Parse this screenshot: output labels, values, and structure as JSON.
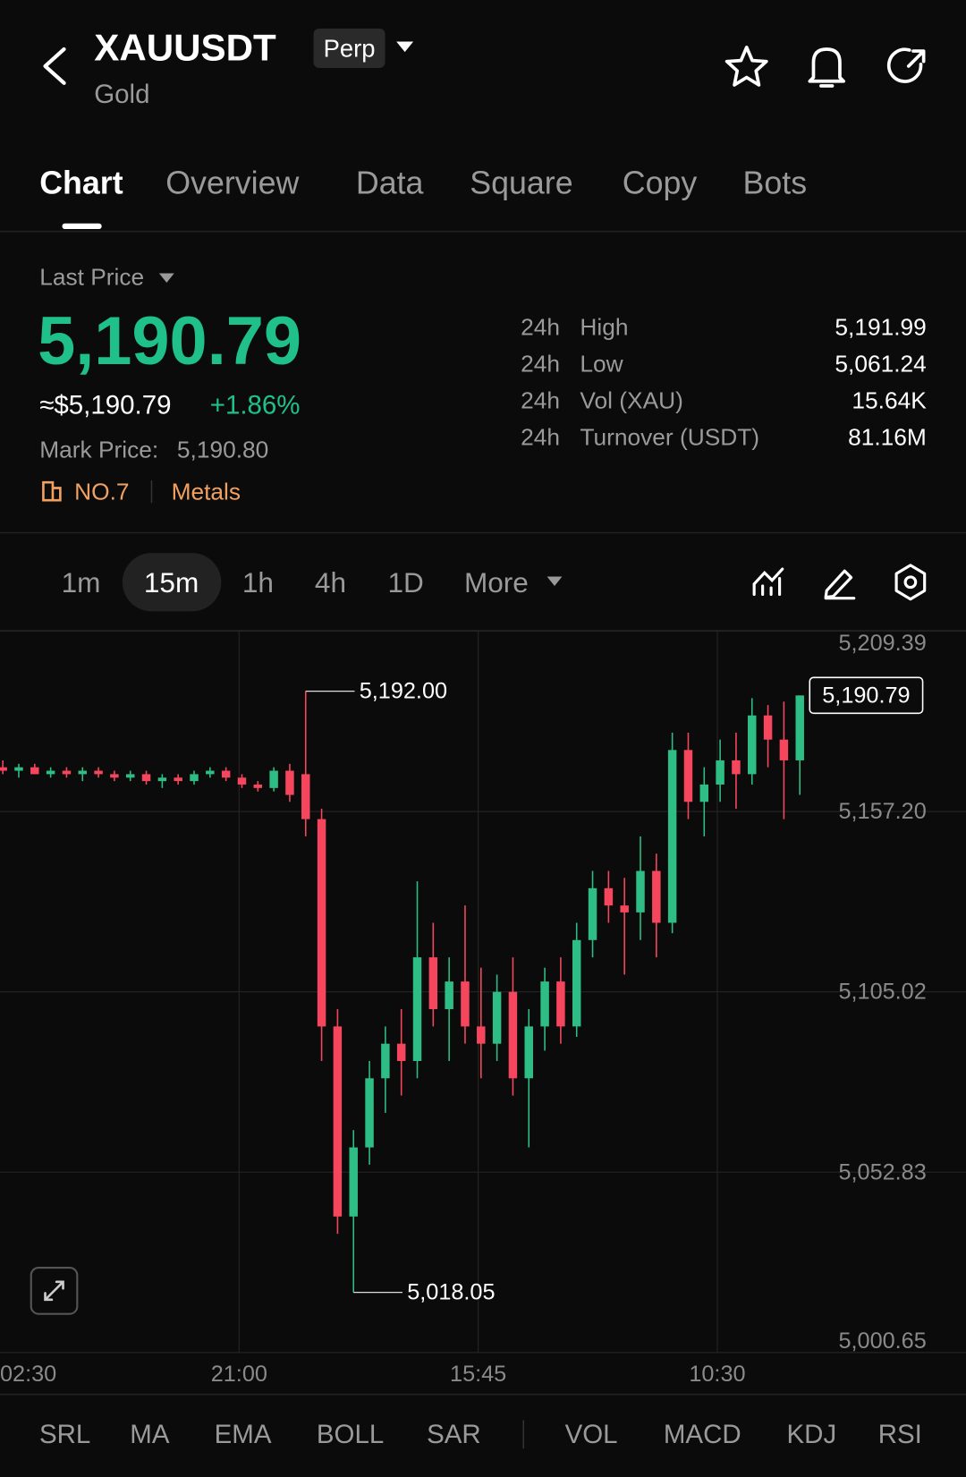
{
  "header": {
    "symbol": "XAUUSDT",
    "badge": "Perp",
    "name": "Gold"
  },
  "tabs": [
    "Chart",
    "Overview",
    "Data",
    "Square",
    "Copy",
    "Bots"
  ],
  "price": {
    "label": "Last Price",
    "last": "5,190.79",
    "usd": "≈$5,190.79",
    "change": "+1.86%",
    "mark_label": "Mark Price:",
    "mark": "5,190.80",
    "rank": "NO.7",
    "sector": "Metals"
  },
  "stats": [
    {
      "period": "24h",
      "label": "High",
      "value": "5,191.99"
    },
    {
      "period": "24h",
      "label": "Low",
      "value": "5,061.24"
    },
    {
      "period": "24h",
      "label": "Vol (XAU)",
      "value": "15.64K"
    },
    {
      "period": "24h",
      "label": "Turnover (USDT)",
      "value": "81.16M"
    }
  ],
  "intervals": [
    "1m",
    "15m",
    "1h",
    "4h",
    "1D",
    "More"
  ],
  "indicators": [
    "SRL",
    "MA",
    "EMA",
    "BOLL",
    "SAR",
    "VOL",
    "MACD",
    "KDJ",
    "RSI"
  ],
  "chart_data": {
    "type": "candlestick",
    "categories": [
      "02:30",
      null,
      null,
      null,
      null,
      null,
      null,
      null,
      null,
      null,
      null,
      null,
      null,
      null,
      null,
      "21:00",
      null,
      null,
      null,
      null,
      null,
      null,
      null,
      null,
      null,
      null,
      null,
      null,
      null,
      null,
      "15:45",
      null,
      null,
      null,
      null,
      null,
      null,
      null,
      null,
      null,
      null,
      null,
      null,
      null,
      null,
      "10:30",
      null,
      null,
      null,
      null,
      null
    ],
    "open": [
      5170,
      5169,
      5170,
      5168,
      5169,
      5168,
      5169,
      5168,
      5167,
      5168,
      5166,
      5167,
      5166,
      5168,
      5169,
      5167,
      5165,
      5164,
      5169,
      5168,
      5155,
      5095,
      5040,
      5060,
      5080,
      5090,
      5085,
      5115,
      5100,
      5108,
      5095,
      5090,
      5105,
      5080,
      5095,
      5108,
      5095,
      5120,
      5135,
      5130,
      5128,
      5140,
      5125,
      5175,
      5160,
      5165,
      5172,
      5168,
      5185,
      5178,
      5172
    ],
    "high": [
      5172,
      5171,
      5171,
      5170,
      5170,
      5170,
      5170,
      5169,
      5169,
      5169,
      5168,
      5168,
      5169,
      5170,
      5170,
      5168,
      5166,
      5170,
      5171,
      5192,
      5158,
      5100,
      5065,
      5085,
      5095,
      5100,
      5137,
      5125,
      5115,
      5130,
      5112,
      5110,
      5115,
      5100,
      5112,
      5115,
      5125,
      5140,
      5140,
      5138,
      5150,
      5145,
      5180,
      5180,
      5170,
      5178,
      5180,
      5190,
      5188,
      5189,
      5190.79
    ],
    "low": [
      5168,
      5167,
      5168,
      5167,
      5167,
      5166,
      5167,
      5166,
      5166,
      5165,
      5164,
      5165,
      5165,
      5167,
      5166,
      5164,
      5163,
      5163,
      5160,
      5150,
      5085,
      5035,
      5018.05,
      5055,
      5070,
      5075,
      5080,
      5095,
      5085,
      5090,
      5080,
      5085,
      5075,
      5060,
      5088,
      5090,
      5092,
      5115,
      5125,
      5110,
      5120,
      5115,
      5122,
      5155,
      5150,
      5160,
      5158,
      5165,
      5170,
      5155,
      5162
    ],
    "close": [
      5169,
      5170,
      5168,
      5169,
      5168,
      5169,
      5168,
      5167,
      5168,
      5166,
      5167,
      5166,
      5168,
      5169,
      5167,
      5165,
      5164,
      5169,
      5162,
      5155,
      5095,
      5040,
      5060,
      5080,
      5090,
      5085,
      5115,
      5100,
      5108,
      5095,
      5090,
      5105,
      5080,
      5095,
      5108,
      5095,
      5120,
      5135,
      5130,
      5128,
      5140,
      5125,
      5175,
      5160,
      5165,
      5172,
      5168,
      5185,
      5178,
      5172,
      5190.79
    ],
    "ylim": [
      5000.65,
      5209.39
    ],
    "yticks": [
      {
        "value": 5209.39,
        "label": "5,209.39"
      },
      {
        "value": 5157.2,
        "label": "5,157.20"
      },
      {
        "value": 5105.02,
        "label": "5,105.02"
      },
      {
        "value": 5052.83,
        "label": "5,052.83"
      },
      {
        "value": 5000.65,
        "label": "5,000.65"
      }
    ],
    "high_marker": {
      "value": 5192,
      "label": "5,192.00"
    },
    "low_marker": {
      "value": 5018.05,
      "label": "5,018.05"
    },
    "price_tag": {
      "value": 5190.79,
      "label": "5,190.79"
    },
    "up_color": "#2ebd85",
    "down_color": "#f6465d",
    "grid": true
  }
}
